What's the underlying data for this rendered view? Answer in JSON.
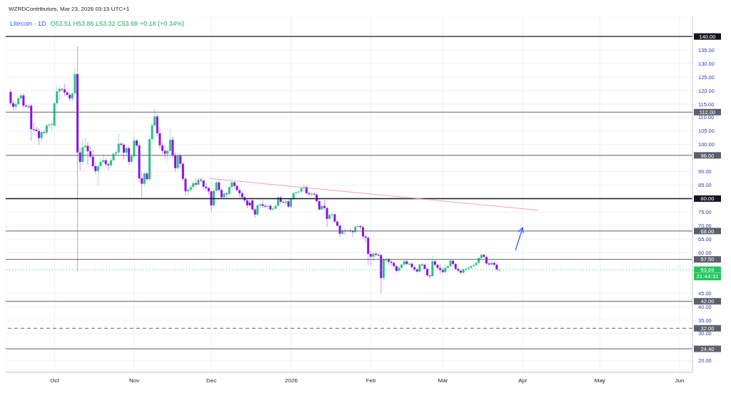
{
  "chart_data": {
    "type": "candlestick",
    "title": "Litecoin · 1D",
    "subtitle": "O53.51 H53.86 L53.32 C53.69 +0.18 (+0.34%)",
    "annotations": [
      "WZRDContributors, Mar 23, 2026 03:15 UTC+1",
      "21:44:31"
    ],
    "x": [
      "2025-09-14",
      "2025-09-15",
      "2025-09-16",
      "2025-09-17",
      "2025-09-18",
      "2025-09-19",
      "2025-09-20",
      "2025-09-21",
      "2025-09-22",
      "2025-09-23",
      "2025-09-24",
      "2025-09-25",
      "2025-09-26",
      "2025-09-27",
      "2025-09-28",
      "2025-09-29",
      "2025-09-30",
      "2025-10-01",
      "2025-10-02",
      "2025-10-03",
      "2025-10-04",
      "2025-10-05",
      "2025-10-06",
      "2025-10-07",
      "2025-10-08",
      "2025-10-09",
      "2025-10-10",
      "2025-10-11",
      "2025-10-12",
      "2025-10-13",
      "2025-10-14",
      "2025-10-15",
      "2025-10-16",
      "2025-10-17",
      "2025-10-18",
      "2025-10-19",
      "2025-10-20",
      "2025-10-21",
      "2025-10-22",
      "2025-10-23",
      "2025-10-24",
      "2025-10-25",
      "2025-10-26",
      "2025-10-27",
      "2025-10-28",
      "2025-10-29",
      "2025-10-30",
      "2025-10-31",
      "2025-11-01",
      "2025-11-02",
      "2025-11-03",
      "2025-11-04",
      "2025-11-05",
      "2025-11-06",
      "2025-11-07",
      "2025-11-08",
      "2025-11-09",
      "2025-11-10",
      "2025-11-11",
      "2025-11-12",
      "2025-11-13",
      "2025-11-14",
      "2025-11-15",
      "2025-11-16",
      "2025-11-17",
      "2025-11-18",
      "2025-11-19",
      "2025-11-20",
      "2025-11-21",
      "2025-11-22",
      "2025-11-23",
      "2025-11-24",
      "2025-11-25",
      "2025-11-26",
      "2025-11-27",
      "2025-11-28",
      "2025-11-29",
      "2025-11-30",
      "2025-12-01",
      "2025-12-02",
      "2025-12-03",
      "2025-12-04",
      "2025-12-05",
      "2025-12-06",
      "2025-12-07",
      "2025-12-08",
      "2025-12-09",
      "2025-12-10",
      "2025-12-11",
      "2025-12-12",
      "2025-12-13",
      "2025-12-14",
      "2025-12-15",
      "2025-12-16",
      "2025-12-17",
      "2025-12-18",
      "2025-12-19",
      "2025-12-20",
      "2025-12-21",
      "2025-12-22",
      "2025-12-23",
      "2025-12-24",
      "2025-12-25",
      "2025-12-26",
      "2025-12-27",
      "2025-12-28",
      "2025-12-29",
      "2025-12-30",
      "2025-12-31",
      "2026-01-01",
      "2026-01-02",
      "2026-01-03",
      "2026-01-04",
      "2026-01-05",
      "2026-01-06",
      "2026-01-07",
      "2026-01-08",
      "2026-01-09",
      "2026-01-10",
      "2026-01-11",
      "2026-01-12",
      "2026-01-13",
      "2026-01-14",
      "2026-01-15",
      "2026-01-16",
      "2026-01-17",
      "2026-01-18",
      "2026-01-19",
      "2026-01-20",
      "2026-01-21",
      "2026-01-22",
      "2026-01-23",
      "2026-01-24",
      "2026-01-25",
      "2026-01-26",
      "2026-01-27",
      "2026-01-28",
      "2026-01-29",
      "2026-01-30",
      "2026-01-31",
      "2026-02-01",
      "2026-02-02",
      "2026-02-03",
      "2026-02-04",
      "2026-02-05",
      "2026-02-06",
      "2026-02-07",
      "2026-02-08",
      "2026-02-09",
      "2026-02-10",
      "2026-02-11",
      "2026-02-12",
      "2026-02-13",
      "2026-02-14",
      "2026-02-15",
      "2026-02-16",
      "2026-02-17",
      "2026-02-18",
      "2026-02-19",
      "2026-02-20",
      "2026-02-21",
      "2026-02-22",
      "2026-02-23",
      "2026-02-24",
      "2026-02-25",
      "2026-02-26",
      "2026-02-27",
      "2026-02-28",
      "2026-03-01",
      "2026-03-02",
      "2026-03-03",
      "2026-03-04",
      "2026-03-05",
      "2026-03-06",
      "2026-03-07",
      "2026-03-08",
      "2026-03-09",
      "2026-03-10",
      "2026-03-11",
      "2026-03-12",
      "2026-03-13",
      "2026-03-14",
      "2026-03-15",
      "2026-03-16",
      "2026-03-17",
      "2026-03-18",
      "2026-03-19",
      "2026-03-20",
      "2026-03-21",
      "2026-03-22",
      "2026-03-23"
    ],
    "ohlc": [
      [
        119.5,
        120.5,
        114.5,
        115.3
      ],
      [
        115.3,
        116.5,
        112.5,
        114
      ],
      [
        114,
        116,
        112.5,
        115
      ],
      [
        115,
        118,
        114.5,
        117.1
      ],
      [
        117.1,
        119,
        116.5,
        118.2
      ],
      [
        118.2,
        119,
        113.5,
        114.4
      ],
      [
        114.4,
        115,
        113.8,
        114.1
      ],
      [
        114.1,
        114.8,
        113.5,
        114
      ],
      [
        114.4,
        115,
        101.5,
        105.7
      ],
      [
        105.7,
        108,
        104.5,
        105.5
      ],
      [
        105.5,
        106.5,
        104.5,
        105
      ],
      [
        105,
        106,
        100,
        102.4
      ],
      [
        102.4,
        105,
        101,
        104.6
      ],
      [
        104.6,
        105.2,
        103.8,
        104.4
      ],
      [
        104.4,
        107.6,
        103.5,
        107.1
      ],
      [
        107.1,
        108,
        106,
        107.4
      ],
      [
        107.4,
        108.4,
        105,
        107.6
      ],
      [
        107,
        115.8,
        106.5,
        115.3
      ],
      [
        115.3,
        122,
        114.5,
        119.7
      ],
      [
        119.7,
        121.5,
        116.5,
        120.6
      ],
      [
        120.6,
        121,
        119.5,
        120.4
      ],
      [
        120.4,
        122.5,
        118,
        119.3
      ],
      [
        119.3,
        120,
        117.5,
        118.4
      ],
      [
        118.4,
        119.2,
        116,
        117.1
      ],
      [
        117.1,
        119.5,
        116,
        118.9
      ],
      [
        118.9,
        128.5,
        118,
        126.1
      ],
      [
        126.1,
        136.3,
        53.1,
        97.1
      ],
      [
        97.1,
        99,
        90.5,
        93.6
      ],
      [
        93.6,
        102,
        92.5,
        99
      ],
      [
        99,
        102.5,
        97.5,
        99.5
      ],
      [
        99.5,
        101,
        92.5,
        97.5
      ],
      [
        97.5,
        99.5,
        95,
        95.5
      ],
      [
        95.5,
        98,
        91,
        92
      ],
      [
        92,
        93.5,
        89,
        90.2
      ],
      [
        90.2,
        93,
        85,
        92
      ],
      [
        92,
        95,
        91,
        93.6
      ],
      [
        93.6,
        96.5,
        93,
        94.2
      ],
      [
        94.2,
        95,
        91.5,
        92.7
      ],
      [
        92.7,
        93.5,
        90.5,
        92.3
      ],
      [
        92.3,
        95,
        91.5,
        94.2
      ],
      [
        94.2,
        97,
        93.5,
        96.6
      ],
      [
        96.6,
        98,
        96,
        97.1
      ],
      [
        97.1,
        104,
        96.5,
        100.3
      ],
      [
        100.3,
        101,
        99,
        99.9
      ],
      [
        99.9,
        100.5,
        94.5,
        97
      ],
      [
        97,
        99.5,
        96,
        98.7
      ],
      [
        98.7,
        99.5,
        92.5,
        93.6
      ],
      [
        93.6,
        96.5,
        93,
        95.7
      ],
      [
        95.7,
        103,
        94.5,
        101.5
      ],
      [
        101.5,
        102,
        99,
        99.7
      ],
      [
        99.7,
        100.5,
        86,
        87.5
      ],
      [
        87.5,
        90,
        80.5,
        85.5
      ],
      [
        85.5,
        90,
        84.5,
        89.3
      ],
      [
        89.3,
        90,
        86.5,
        87.2
      ],
      [
        87.2,
        103,
        86.5,
        102
      ],
      [
        102,
        108,
        101,
        107.1
      ],
      [
        107.1,
        113.5,
        106,
        110.4
      ],
      [
        110.4,
        111.5,
        103,
        104.2
      ],
      [
        104.2,
        106.5,
        98.5,
        99.7
      ],
      [
        99.7,
        101,
        96.5,
        97.7
      ],
      [
        97.7,
        99.5,
        94.5,
        96.6
      ],
      [
        96.6,
        98.5,
        94,
        97.7
      ],
      [
        97.7,
        106,
        96.5,
        101.8
      ],
      [
        101.8,
        103,
        95,
        95.9
      ],
      [
        95.9,
        97,
        90,
        91.3
      ],
      [
        91.3,
        96.5,
        90.5,
        95.9
      ],
      [
        95.9,
        96.5,
        91.5,
        92.9
      ],
      [
        92.9,
        93.5,
        86.5,
        87.3
      ],
      [
        87.3,
        88,
        81,
        82.7
      ],
      [
        82.7,
        84,
        81,
        83.2
      ],
      [
        83.2,
        85,
        82.5,
        84.3
      ],
      [
        84.3,
        86.5,
        83.5,
        85.7
      ],
      [
        85.7,
        87.5,
        84.5,
        85.2
      ],
      [
        85.2,
        87.8,
        84.8,
        87
      ],
      [
        87,
        87.5,
        86,
        86.7
      ],
      [
        86.7,
        87,
        83.5,
        84.4
      ],
      [
        84.4,
        85.5,
        83,
        83.9
      ],
      [
        83.9,
        84.5,
        81.5,
        82.7
      ],
      [
        82.7,
        83,
        75,
        77.5
      ],
      [
        77.5,
        83.5,
        77,
        82.9
      ],
      [
        82.9,
        86.5,
        82.5,
        86
      ],
      [
        86,
        87,
        82.5,
        83.2
      ],
      [
        83.2,
        84,
        80,
        80.5
      ],
      [
        80.5,
        82.5,
        80,
        81.9
      ],
      [
        81.9,
        82.5,
        80.5,
        81.7
      ],
      [
        81.7,
        85,
        81,
        84.3
      ],
      [
        84.3,
        86.5,
        83.5,
        86
      ],
      [
        86,
        86.5,
        84,
        84.7
      ],
      [
        84.7,
        85.5,
        82.5,
        83.1
      ],
      [
        83.1,
        84,
        80.5,
        82
      ],
      [
        82,
        83,
        80,
        80.5
      ],
      [
        80.5,
        81,
        78.5,
        79.3
      ],
      [
        79.3,
        80,
        76.5,
        77.5
      ],
      [
        78.5,
        79.5,
        76.8,
        77.5
      ],
      [
        79.3,
        80,
        75.5,
        76
      ],
      [
        76,
        76.8,
        73,
        74.1
      ],
      [
        74.1,
        78,
        73.5,
        77.5
      ],
      [
        77.5,
        78.5,
        76.8,
        77.9
      ],
      [
        77.9,
        79.5,
        76.5,
        77.3
      ],
      [
        77.3,
        78,
        76.5,
        77
      ],
      [
        77,
        78,
        76,
        77.3
      ],
      [
        77.3,
        77.8,
        75.5,
        76
      ],
      [
        76,
        77,
        75.5,
        76.3
      ],
      [
        76.3,
        78,
        76,
        77.3
      ],
      [
        77.3,
        81,
        77,
        80.4
      ],
      [
        80.4,
        81,
        78,
        78.8
      ],
      [
        78.8,
        79.5,
        78.3,
        78.6
      ],
      [
        78.6,
        79.5,
        77.5,
        79
      ],
      [
        79,
        79.8,
        76.5,
        77
      ],
      [
        77,
        80.5,
        76.5,
        80
      ],
      [
        80,
        82.5,
        79.5,
        82
      ],
      [
        82,
        82.8,
        81.2,
        82.3
      ],
      [
        82.3,
        83,
        81.8,
        82.6
      ],
      [
        82.6,
        84.5,
        82,
        83.8
      ],
      [
        83.8,
        85.2,
        82.5,
        84.3
      ],
      [
        84.3,
        84.8,
        81.5,
        82
      ],
      [
        82,
        82.5,
        81,
        81.6
      ],
      [
        81.6,
        82.3,
        81,
        81.8
      ],
      [
        81.8,
        82.2,
        80.8,
        81.5
      ],
      [
        81.5,
        82,
        78.5,
        79
      ],
      [
        79,
        80,
        75.5,
        76
      ],
      [
        76,
        78.5,
        75.8,
        77.3
      ],
      [
        77.3,
        79.5,
        76,
        76.5
      ],
      [
        76.5,
        77,
        69.5,
        72.5
      ],
      [
        72.5,
        74.5,
        72,
        74
      ],
      [
        74,
        74.8,
        73.2,
        74.2
      ],
      [
        74.2,
        74.5,
        71,
        71.5
      ],
      [
        71.5,
        72,
        69.5,
        70
      ],
      [
        70,
        70.5,
        65.8,
        67
      ],
      [
        67,
        68.8,
        66.5,
        68.2
      ],
      [
        68.2,
        68.8,
        66.5,
        68
      ],
      [
        68,
        68.8,
        67.5,
        68.2
      ],
      [
        68.2,
        68.8,
        67.5,
        68
      ],
      [
        68,
        68.5,
        65.8,
        67.6
      ],
      [
        67.6,
        70,
        67,
        69.6
      ],
      [
        69.6,
        70.5,
        69,
        69.8
      ],
      [
        69.8,
        70.2,
        68.5,
        69.4
      ],
      [
        69.4,
        69.8,
        65,
        66
      ],
      [
        66,
        67,
        63.5,
        65.5
      ],
      [
        65.5,
        66,
        55.5,
        59.5
      ],
      [
        59.5,
        60.5,
        55.5,
        58.5
      ],
      [
        58.5,
        60.2,
        56.5,
        59.6
      ],
      [
        59.6,
        60.2,
        58.5,
        59.2
      ],
      [
        59.2,
        59.8,
        58.5,
        59.1
      ],
      [
        59.1,
        59.5,
        45.1,
        50.6
      ],
      [
        50.6,
        58,
        50,
        57.5
      ],
      [
        57.2,
        58,
        56,
        57.4
      ],
      [
        57.4,
        58,
        55.5,
        56.6
      ],
      [
        56.6,
        57.2,
        55,
        56.2
      ],
      [
        56.2,
        56.8,
        54,
        55
      ],
      [
        55,
        55.5,
        52.5,
        53.3
      ],
      [
        53.3,
        55,
        53,
        54.4
      ],
      [
        54.4,
        56.2,
        54,
        55.6
      ],
      [
        55.6,
        57.2,
        55.2,
        56.8
      ],
      [
        56.8,
        57.2,
        55.3,
        55.8
      ],
      [
        55.8,
        56.5,
        55.2,
        55.9
      ],
      [
        55.9,
        56.2,
        54,
        54.6
      ],
      [
        54.6,
        55,
        53.2,
        53.8
      ],
      [
        53.8,
        54.2,
        52.5,
        53
      ],
      [
        53,
        56,
        52.8,
        55.6
      ],
      [
        55.6,
        56.3,
        55,
        55.5
      ],
      [
        55.5,
        55.8,
        53.5,
        54
      ],
      [
        54,
        54.5,
        51,
        51.6
      ],
      [
        51.6,
        52,
        50.3,
        51.3
      ],
      [
        51.3,
        58.8,
        51,
        56.8
      ],
      [
        56.8,
        57.2,
        55,
        55.5
      ],
      [
        55.5,
        55.8,
        53.8,
        54.3
      ],
      [
        54.3,
        55.8,
        52,
        53.6
      ],
      [
        53.6,
        54.5,
        52.2,
        52.8
      ],
      [
        52.8,
        55.8,
        52.5,
        54.4
      ],
      [
        54.4,
        55.5,
        54,
        55
      ],
      [
        55,
        57.5,
        54.5,
        57
      ],
      [
        57,
        57.3,
        55,
        55.8
      ],
      [
        55.8,
        56.2,
        53.5,
        54
      ],
      [
        54,
        54.5,
        52.8,
        53.3
      ],
      [
        53.3,
        53.8,
        51.8,
        52.6
      ],
      [
        52.6,
        54.3,
        52.3,
        53.9
      ],
      [
        53.9,
        54.5,
        53.4,
        54
      ],
      [
        54,
        55,
        53.5,
        54.4
      ],
      [
        54.4,
        55.6,
        54,
        55
      ],
      [
        55,
        56,
        54.8,
        55.4
      ],
      [
        55.4,
        56.5,
        55,
        56.2
      ],
      [
        56.2,
        58.3,
        55.8,
        58
      ],
      [
        58,
        59.6,
        57.5,
        59.2
      ],
      [
        59.2,
        59.5,
        58,
        58.4
      ],
      [
        58.4,
        58.8,
        55.5,
        56
      ],
      [
        56,
        56.5,
        55.2,
        55.6
      ],
      [
        55.6,
        56.6,
        55.2,
        56.2
      ],
      [
        56.2,
        56.5,
        55.2,
        55.5
      ],
      [
        55.5,
        55.8,
        53.5,
        53.8
      ],
      [
        53.51,
        53.86,
        53.32,
        53.69
      ]
    ],
    "colors": [
      "#8a12e6",
      "#8a12e6",
      "#26c281",
      "#26c281",
      "#26c281",
      "#8a12e6",
      "#8a12e6",
      "#8a12e6",
      "#8a12e6",
      "#8a12e6",
      "#8a12e6",
      "#8a12e6",
      "#26c281",
      "#8a12e6",
      "#26c281",
      "#26c281",
      "#26c281",
      "#26c281",
      "#26c281",
      "#26c281",
      "#8a12e6",
      "#8a12e6",
      "#8a12e6",
      "#8a12e6",
      "#26c281",
      "#26c281",
      "#8a12e6",
      "#8a12e6",
      "#26c281",
      "#26c281",
      "#8a12e6",
      "#8a12e6",
      "#8a12e6",
      "#8a12e6",
      "#26c281",
      "#26c281",
      "#26c281",
      "#8a12e6",
      "#8a12e6",
      "#26c281",
      "#26c281",
      "#26c281",
      "#26c281",
      "#8a12e6",
      "#8a12e6",
      "#26c281",
      "#8a12e6",
      "#26c281",
      "#26c281",
      "#8a12e6",
      "#8a12e6",
      "#8a12e6",
      "#26c281",
      "#8a12e6",
      "#26c281",
      "#26c281",
      "#26c281",
      "#8a12e6",
      "#8a12e6",
      "#8a12e6",
      "#8a12e6",
      "#26c281",
      "#26c281",
      "#8a12e6",
      "#8a12e6",
      "#26c281",
      "#8a12e6",
      "#8a12e6",
      "#8a12e6",
      "#26c281",
      "#26c281",
      "#26c281",
      "#8a12e6",
      "#26c281",
      "#8a12e6",
      "#8a12e6",
      "#8a12e6",
      "#8a12e6",
      "#8a12e6",
      "#26c281",
      "#26c281",
      "#8a12e6",
      "#8a12e6",
      "#26c281",
      "#8a12e6",
      "#26c281",
      "#26c281",
      "#8a12e6",
      "#8a12e6",
      "#8a12e6",
      "#8a12e6",
      "#8a12e6",
      "#8a12e6",
      "#8a12e6",
      "#8a12e6",
      "#8a12e6",
      "#26c281",
      "#26c281",
      "#8a12e6",
      "#8a12e6",
      "#26c281",
      "#8a12e6",
      "#26c281",
      "#26c281",
      "#26c281",
      "#8a12e6",
      "#8a12e6",
      "#26c281",
      "#8a12e6",
      "#26c281",
      "#26c281",
      "#26c281",
      "#26c281",
      "#26c281",
      "#26c281",
      "#8a12e6",
      "#8a12e6",
      "#26c281",
      "#8a12e6",
      "#8a12e6",
      "#8a12e6",
      "#26c281",
      "#8a12e6",
      "#8a12e6",
      "#26c281",
      "#26c281",
      "#8a12e6",
      "#8a12e6",
      "#8a12e6",
      "#26c281",
      "#8a12e6",
      "#26c281",
      "#8a12e6",
      "#8a12e6",
      "#26c281",
      "#26c281",
      "#8a12e6",
      "#8a12e6",
      "#8a12e6",
      "#8a12e6",
      "#8a12e6",
      "#26c281",
      "#8a12e6",
      "#8a12e6",
      "#8a12e6",
      "#26c281",
      "#26c281",
      "#8a12e6",
      "#8a12e6",
      "#8a12e6",
      "#8a12e6",
      "#26c281",
      "#26c281",
      "#26c281",
      "#8a12e6",
      "#26c281",
      "#8a12e6",
      "#8a12e6",
      "#8a12e6",
      "#26c281",
      "#8a12e6",
      "#8a12e6",
      "#8a12e6",
      "#8a12e6",
      "#26c281",
      "#8a12e6",
      "#8a12e6",
      "#8a12e6",
      "#8a12e6",
      "#26c281",
      "#26c281",
      "#26c281",
      "#8a12e6",
      "#8a12e6",
      "#8a12e6",
      "#8a12e6",
      "#26c281",
      "#26c281",
      "#26c281",
      "#26c281",
      "#26c281",
      "#26c281",
      "#26c281",
      "#26c281",
      "#8a12e6",
      "#8a12e6",
      "#8a12e6",
      "#26c281",
      "#8a12e6",
      "#8a12e6",
      "#26c281"
    ],
    "series": [
      {
        "type": "line",
        "color": "#f0a3b4",
        "x": [
          "2025-11-30",
          "2026-04-07"
        ],
        "values": [
          87.5,
          75.7
        ]
      }
    ],
    "ref_lines": [
      {
        "axis": "y",
        "value": 140,
        "label": "140.00",
        "color": "#131722"
      },
      {
        "axis": "y",
        "value": 112,
        "label": "112.00",
        "color": "#5d606b"
      },
      {
        "axis": "y",
        "value": 96,
        "label": "96.00",
        "color": "#5d606b"
      },
      {
        "axis": "y",
        "value": 80,
        "label": "80.00",
        "color": "#131722"
      },
      {
        "axis": "y",
        "value": 68,
        "label": "68.00",
        "color": "#5d606b"
      },
      {
        "axis": "y",
        "value": 57.5,
        "label": "57.50",
        "color": "#5d606b"
      },
      {
        "axis": "y",
        "value": 42,
        "label": "42.00",
        "color": "#5d606b"
      },
      {
        "axis": "y",
        "value": 32,
        "label": "32.00",
        "color": "#5d606b",
        "line_style": "dashed"
      },
      {
        "axis": "y",
        "value": 24.4,
        "label": "24.40",
        "color": "#5d606b"
      },
      {
        "axis": "y",
        "value": 53.69,
        "label": "53.69",
        "color": "#22c55e",
        "line_style": "dotted"
      }
    ],
    "xlim": [
      "2025-09-12",
      "2026-06-06"
    ],
    "xticks": [
      {
        "value": "2025-10-01",
        "label": "Oct"
      },
      {
        "value": "2025-11-01",
        "label": "Nov"
      },
      {
        "value": "2025-12-01",
        "label": "Dec"
      },
      {
        "value": "2026-01-01",
        "label": "2026"
      },
      {
        "value": "2026-02-01",
        "label": "Feb"
      },
      {
        "value": "2026-03-01",
        "label": "Mar"
      },
      {
        "value": "2026-04-01",
        "label": "Apr"
      },
      {
        "value": "2026-05-01",
        "label": "May"
      },
      {
        "value": "2026-06-01",
        "label": "Jun"
      }
    ],
    "ylim": [
      15.7,
      147.7
    ],
    "yticks": [
      {
        "value": 20,
        "label": "20.00"
      },
      {
        "value": 30,
        "label": "30.00"
      },
      {
        "value": 35,
        "label": "35.00"
      },
      {
        "value": 40,
        "label": "40.00"
      },
      {
        "value": 45,
        "label": "45.00"
      },
      {
        "value": 60,
        "label": "60.00"
      },
      {
        "value": 65,
        "label": "65.00"
      },
      {
        "value": 70,
        "label": "70.00"
      },
      {
        "value": 75,
        "label": "75.00"
      },
      {
        "value": 85,
        "label": "85.00"
      },
      {
        "value": 90,
        "label": "90.00"
      },
      {
        "value": 100,
        "label": "100.00"
      },
      {
        "value": 105,
        "label": "105.00"
      },
      {
        "value": 110,
        "label": "110.00"
      },
      {
        "value": 115,
        "label": "115.00"
      },
      {
        "value": 120,
        "label": "120.00"
      },
      {
        "value": 125,
        "label": "125.00"
      },
      {
        "value": 130,
        "label": "130.00"
      },
      {
        "value": 135,
        "label": "135.00"
      }
    ],
    "grid": true
  }
}
